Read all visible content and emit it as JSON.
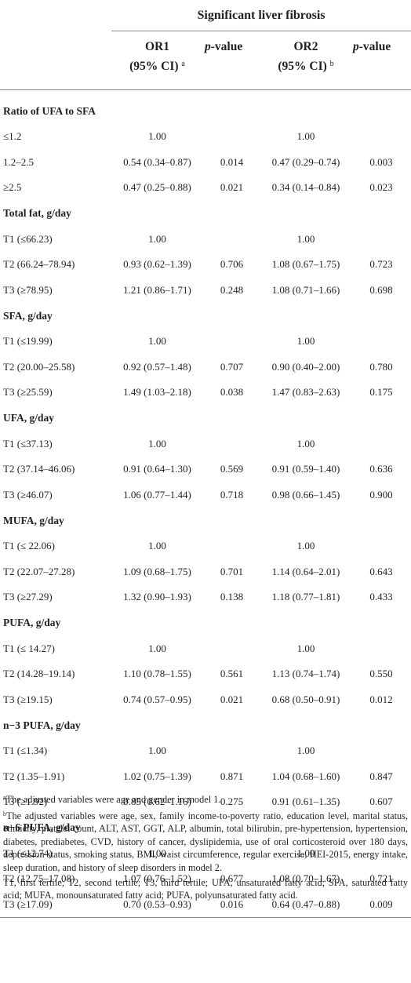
{
  "header": {
    "title": "Significant liver fibrosis",
    "or1_label": "OR1",
    "or1_ci": "(95% CI)",
    "or1_sup": "a",
    "pvalue_label": "p",
    "pvalue_suffix": "-value",
    "or2_label": "OR2",
    "or2_ci": "(95% CI)",
    "or2_sup": "b"
  },
  "groups": [
    {
      "title": "Ratio of UFA to SFA",
      "rows": [
        {
          "label": "≤1.2",
          "or1": "1.00",
          "p1": "",
          "or2": "1.00",
          "p2": ""
        },
        {
          "label": "1.2–2.5",
          "or1": "0.54 (0.34–0.87)",
          "p1": "0.014",
          "or2": "0.47 (0.29–0.74)",
          "p2": "0.003"
        },
        {
          "label": "≥2.5",
          "or1": "0.47 (0.25–0.88)",
          "p1": "0.021",
          "or2": "0.34 (0.14–0.84)",
          "p2": "0.023"
        }
      ]
    },
    {
      "title": "Total fat, g/day",
      "rows": [
        {
          "label": "T1 (≤66.23)",
          "or1": "1.00",
          "p1": "",
          "or2": "1.00",
          "p2": ""
        },
        {
          "label": "T2 (66.24–78.94)",
          "or1": "0.93 (0.62–1.39)",
          "p1": "0.706",
          "or2": "1.08 (0.67–1.75)",
          "p2": "0.723"
        },
        {
          "label": "T3 (≥78.95)",
          "or1": "1.21 (0.86–1.71)",
          "p1": "0.248",
          "or2": "1.08 (0.71–1.66)",
          "p2": "0.698"
        }
      ]
    },
    {
      "title": "SFA, g/day",
      "rows": [
        {
          "label": "T1 (≤19.99)",
          "or1": "1.00",
          "p1": "",
          "or2": "1.00",
          "p2": ""
        },
        {
          "label": "T2 (20.00–25.58)",
          "or1": "0.92 (0.57–1.48)",
          "p1": "0.707",
          "or2": "0.90 (0.40–2.00)",
          "p2": "0.780"
        },
        {
          "label": "T3 (≥25.59)",
          "or1": "1.49 (1.03–2.18)",
          "p1": "0.038",
          "or2": "1.47 (0.83–2.63)",
          "p2": "0.175"
        }
      ]
    },
    {
      "title": "UFA, g/day",
      "rows": [
        {
          "label": "T1 (≤37.13)",
          "or1": "1.00",
          "p1": "",
          "or2": "1.00",
          "p2": ""
        },
        {
          "label": "T2 (37.14–46.06)",
          "or1": "0.91 (0.64–1.30)",
          "p1": "0.569",
          "or2": "0.91 (0.59–1.40)",
          "p2": "0.636"
        },
        {
          "label": "T3 (≥46.07)",
          "or1": "1.06 (0.77–1.44)",
          "p1": "0.718",
          "or2": "0.98 (0.66–1.45)",
          "p2": "0.900"
        }
      ]
    },
    {
      "title": "MUFA, g/day",
      "rows": [
        {
          "label": "T1 (≤ 22.06)",
          "or1": "1.00",
          "p1": "",
          "or2": "1.00",
          "p2": ""
        },
        {
          "label": "T2 (22.07–27.28)",
          "or1": "1.09 (0.68–1.75)",
          "p1": "0.701",
          "or2": "1.14 (0.64–2.01)",
          "p2": "0.643"
        },
        {
          "label": "T3 (≥27.29)",
          "or1": "1.32 (0.90–1.93)",
          "p1": "0.138",
          "or2": "1.18 (0.77–1.81)",
          "p2": "0.433"
        }
      ]
    },
    {
      "title": "PUFA, g/day",
      "rows": [
        {
          "label": "T1 (≤ 14.27)",
          "or1": "1.00",
          "p1": "",
          "or2": "1.00",
          "p2": ""
        },
        {
          "label": "T2 (14.28–19.14)",
          "or1": "1.10 (0.78–1.55)",
          "p1": "0.561",
          "or2": "1.13 (0.74–1.74)",
          "p2": "0.550"
        },
        {
          "label": "T3 (≥19.15)",
          "or1": "0.74 (0.57–0.95)",
          "p1": "0.021",
          "or2": "0.68 (0.50–0.91)",
          "p2": "0.012"
        }
      ]
    },
    {
      "title": "n−3 PUFA, g/day",
      "rows": [
        {
          "label": "T1 (≤1.34)",
          "or1": "1.00",
          "p1": "",
          "or2": "1.00",
          "p2": ""
        },
        {
          "label": "T2 (1.35–1.91)",
          "or1": "1.02 (0.75–1.39)",
          "p1": "0.871",
          "or2": "1.04 (0.68–1.60)",
          "p2": "0.847"
        },
        {
          "label": "T3 (≥1.92)",
          "or1": "0.85 (0.62–1.16)",
          "p1": "0.275",
          "or2": "0.91 (0.61–1.35)",
          "p2": "0.607"
        }
      ]
    },
    {
      "title": "n−6 PUFA, g/day",
      "rows": [
        {
          "label": "T1 (≤12.74)",
          "or1": "1.00",
          "p1": "",
          "or2": "1.00",
          "p2": ""
        },
        {
          "label": "T2 (12.75–17.08)",
          "or1": "1.07 (0.76–1.52)",
          "p1": "0.677",
          "or2": "1.08 (0.70–1.67)",
          "p2": "0.721"
        },
        {
          "label": "T3 (≥17.09)",
          "or1": "0.70 (0.53–0.93)",
          "p1": "0.016",
          "or2": "0.64 (0.47–0.88)",
          "p2": "0.009"
        }
      ]
    }
  ],
  "notes": {
    "a_mark": "a",
    "a_text": "The adjusted variables were age and gender in model 1.",
    "b_mark": "b",
    "b_text": "The adjusted variables were age, sex, family income-to-poverty ratio, education level, marital status, ethnicity, platelet count, ALT, AST, GGT, ALP, albumin, total bilirubin, pre-hypertension, hypertension, diabetes, prediabetes, CVD, history of cancer, dyslipidemia, use of oral corticosteroid over 180 days, depression status, smoking status, BMI, waist circumference, regular exercise, HEI-2015, energy intake, sleep duration, and history of sleep disorders in model 2.",
    "abbreviations": "T1, first tertile; T2, second tertile; T3, third tertile; UFA, unsaturated fatty acid; SFA, saturated fatty acid; MUFA, monounsaturated fatty acid; PUFA, polyunsaturated fatty acid."
  }
}
